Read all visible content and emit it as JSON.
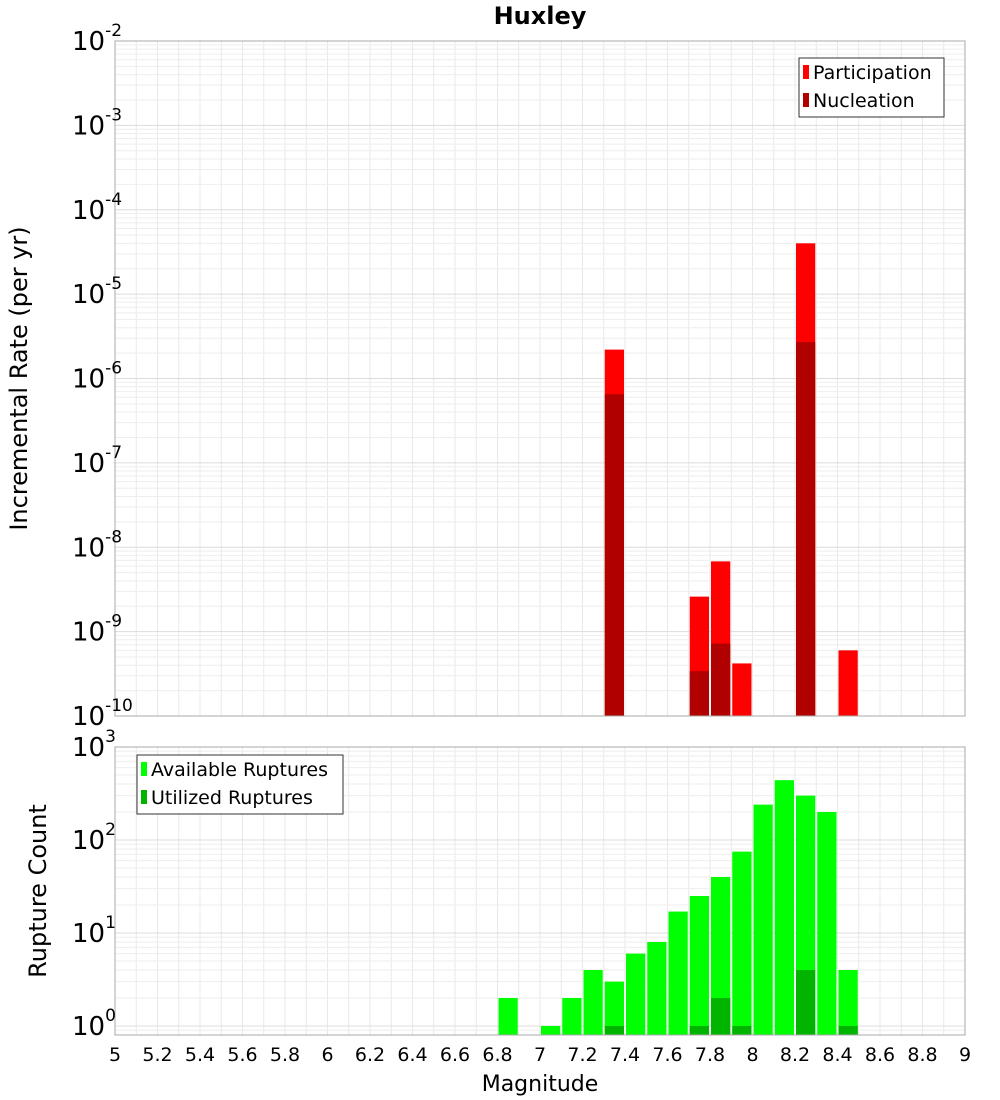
{
  "title": "Huxley",
  "xlabel": "Magnitude",
  "chart_data": [
    {
      "type": "bar",
      "ylabel": "Incremental Rate (per yr)",
      "yscale": "log",
      "ylim": [
        1e-10,
        0.01
      ],
      "xlim": [
        5,
        9
      ],
      "grid": true,
      "legend_position": "top-right",
      "ytick_labels": [
        {
          "base": "10",
          "exp": "-10"
        },
        {
          "base": "10",
          "exp": "-9"
        },
        {
          "base": "10",
          "exp": "-8"
        },
        {
          "base": "10",
          "exp": "-7"
        },
        {
          "base": "10",
          "exp": "-6"
        },
        {
          "base": "10",
          "exp": "-5"
        },
        {
          "base": "10",
          "exp": "-4"
        },
        {
          "base": "10",
          "exp": "-3"
        },
        {
          "base": "10",
          "exp": "-2"
        }
      ],
      "series": [
        {
          "name": "Participation",
          "color": "#ff0000",
          "points": [
            {
              "x": 7.35,
              "y": 2.2e-06
            },
            {
              "x": 7.75,
              "y": 2.6e-09
            },
            {
              "x": 7.85,
              "y": 6.8e-09
            },
            {
              "x": 7.95,
              "y": 4.2e-10
            },
            {
              "x": 8.25,
              "y": 4e-05
            },
            {
              "x": 8.45,
              "y": 6e-10
            }
          ]
        },
        {
          "name": "Nucleation",
          "color": "#b00000",
          "points": [
            {
              "x": 7.35,
              "y": 6.5e-07
            },
            {
              "x": 7.75,
              "y": 3.4e-10
            },
            {
              "x": 7.85,
              "y": 7.2e-10
            },
            {
              "x": 8.25,
              "y": 2.7e-06
            }
          ]
        }
      ]
    },
    {
      "type": "bar",
      "ylabel": "Rupture Count",
      "yscale": "log",
      "ylim": [
        0.8,
        1000
      ],
      "xlim": [
        5,
        9
      ],
      "grid": true,
      "legend_position": "top-left",
      "ytick_labels": [
        {
          "base": "10",
          "exp": "0",
          "value": 1
        },
        {
          "base": "10",
          "exp": "1",
          "value": 10
        },
        {
          "base": "10",
          "exp": "2",
          "value": 100
        },
        {
          "base": "10",
          "exp": "3",
          "value": 1000
        }
      ],
      "series": [
        {
          "name": "Available Ruptures",
          "color": "#00ff00",
          "points": [
            {
              "x": 6.85,
              "y": 2
            },
            {
              "x": 7.05,
              "y": 1
            },
            {
              "x": 7.15,
              "y": 2
            },
            {
              "x": 7.25,
              "y": 4
            },
            {
              "x": 7.35,
              "y": 3
            },
            {
              "x": 7.45,
              "y": 6
            },
            {
              "x": 7.55,
              "y": 8
            },
            {
              "x": 7.65,
              "y": 17
            },
            {
              "x": 7.75,
              "y": 25
            },
            {
              "x": 7.85,
              "y": 40
            },
            {
              "x": 7.95,
              "y": 75
            },
            {
              "x": 8.05,
              "y": 240
            },
            {
              "x": 8.15,
              "y": 440
            },
            {
              "x": 8.25,
              "y": 300
            },
            {
              "x": 8.35,
              "y": 200
            },
            {
              "x": 8.45,
              "y": 4
            }
          ]
        },
        {
          "name": "Utilized Ruptures",
          "color": "#00b400",
          "points": [
            {
              "x": 7.35,
              "y": 1
            },
            {
              "x": 7.75,
              "y": 1
            },
            {
              "x": 7.85,
              "y": 2
            },
            {
              "x": 7.95,
              "y": 1
            },
            {
              "x": 8.25,
              "y": 4
            },
            {
              "x": 8.45,
              "y": 1
            }
          ]
        }
      ]
    }
  ],
  "xtick_labels": [
    "5",
    "5.2",
    "5.4",
    "5.6",
    "5.8",
    "6",
    "6.2",
    "6.4",
    "6.6",
    "6.8",
    "7",
    "7.2",
    "7.4",
    "7.6",
    "7.8",
    "8",
    "8.2",
    "8.4",
    "8.6",
    "8.8",
    "9"
  ]
}
